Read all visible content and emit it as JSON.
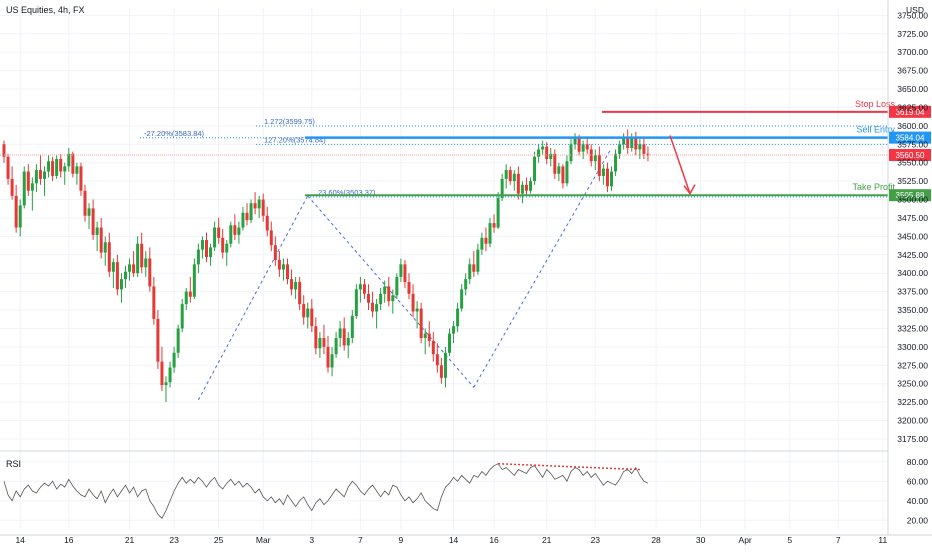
{
  "header": {
    "title": "US Equities, 4h, FX"
  },
  "price_axis": {
    "currency": "USD"
  },
  "rsi_panel": {
    "label": "RSI"
  },
  "colors": {
    "up": "#26a041",
    "down": "#e53935",
    "stop": "#f23645",
    "entry": "#2196f3",
    "target": "#43a047",
    "grid": "#f0f3fa",
    "axis": "#d1d4dc",
    "text": "#131722",
    "dashed": "#4a6fd6",
    "rsi_line": "#555555",
    "divergence": "#e53935"
  },
  "chart_data": {
    "type": "candlestick",
    "title": "US Equities, 4h, FX",
    "ylabel": "USD",
    "ylim": [
      3160,
      3760
    ],
    "y_ticks": [
      3175,
      3200,
      3225,
      3250,
      3275,
      3300,
      3325,
      3350,
      3375,
      3400,
      3425,
      3450,
      3475,
      3500,
      3525,
      3550,
      3575,
      3600,
      3625,
      3650,
      3675,
      3700,
      3725,
      3750
    ],
    "y_tick_labels": [
      "3175.00",
      "3200.00",
      "3225.00",
      "3250.00",
      "3275.00",
      "3300.00",
      "3325.00",
      "3350.00",
      "3375.00",
      "3400.00",
      "3425.00",
      "3450.00",
      "3475.00",
      "3500.00",
      "3525.00",
      "3550.00",
      "3575.00",
      "3600.00",
      "3625.00",
      "3650.00",
      "3675.00",
      "3700.00",
      "3725.00",
      "3750.00"
    ],
    "x_labels": [
      "14",
      "16",
      "21",
      "23",
      "25",
      "Mar",
      "3",
      "7",
      "9",
      "14",
      "16",
      "21",
      "23",
      "28",
      "30",
      "Apr",
      "5",
      "7",
      "11"
    ],
    "x_label_index": [
      4,
      16,
      31,
      42,
      53,
      64,
      76,
      88,
      98,
      111,
      121,
      134,
      146,
      161,
      172,
      183,
      194,
      206,
      217
    ],
    "levels": [
      {
        "name": "Stop Loss",
        "price": 3619.04,
        "label": "3619.04"
      },
      {
        "name": "Sell Entry",
        "price": 3584.04,
        "label": "3584.04"
      },
      {
        "name": "Take Profit",
        "price": 3505.88,
        "label": "3505.88"
      }
    ],
    "current_price": {
      "price": 3560.5,
      "label": "3560.50"
    },
    "second_axis_price": {
      "price": 3575.0,
      "label": "3575.00"
    },
    "fib_annotations": [
      {
        "text": "1.272(3599.75)",
        "price": 3599.75
      },
      {
        "text": "-27.20%(3583.84)",
        "price": 3583.84
      },
      {
        "text": "127.20%(3574.84)",
        "price": 3574.84
      },
      {
        "text": "23.60%(3503.37)",
        "price": 3503.37
      }
    ],
    "candles_ohlc": [
      [
        3575,
        3580,
        3550,
        3558
      ],
      [
        3558,
        3562,
        3520,
        3528
      ],
      [
        3528,
        3545,
        3500,
        3505
      ],
      [
        3505,
        3520,
        3455,
        3462
      ],
      [
        3462,
        3500,
        3450,
        3492
      ],
      [
        3492,
        3545,
        3488,
        3538
      ],
      [
        3538,
        3548,
        3505,
        3512
      ],
      [
        3512,
        3530,
        3485,
        3522
      ],
      [
        3522,
        3548,
        3510,
        3540
      ],
      [
        3540,
        3560,
        3520,
        3528
      ],
      [
        3528,
        3545,
        3505,
        3538
      ],
      [
        3538,
        3560,
        3530,
        3552
      ],
      [
        3552,
        3558,
        3525,
        3532
      ],
      [
        3532,
        3560,
        3528,
        3555
      ],
      [
        3555,
        3562,
        3530,
        3538
      ],
      [
        3538,
        3550,
        3520,
        3545
      ],
      [
        3545,
        3570,
        3538,
        3562
      ],
      [
        3562,
        3565,
        3530,
        3535
      ],
      [
        3535,
        3550,
        3520,
        3545
      ],
      [
        3545,
        3550,
        3505,
        3512
      ],
      [
        3512,
        3520,
        3470,
        3478
      ],
      [
        3478,
        3495,
        3460,
        3488
      ],
      [
        3488,
        3500,
        3445,
        3452
      ],
      [
        3452,
        3470,
        3430,
        3462
      ],
      [
        3462,
        3475,
        3420,
        3428
      ],
      [
        3428,
        3450,
        3410,
        3442
      ],
      [
        3442,
        3455,
        3395,
        3402
      ],
      [
        3402,
        3420,
        3380,
        3415
      ],
      [
        3415,
        3425,
        3370,
        3378
      ],
      [
        3378,
        3400,
        3360,
        3392
      ],
      [
        3392,
        3410,
        3380,
        3402
      ],
      [
        3402,
        3420,
        3390,
        3412
      ],
      [
        3412,
        3430,
        3395,
        3400
      ],
      [
        3400,
        3450,
        3395,
        3440
      ],
      [
        3440,
        3455,
        3400,
        3408
      ],
      [
        3408,
        3430,
        3395,
        3420
      ],
      [
        3420,
        3435,
        3375,
        3382
      ],
      [
        3382,
        3395,
        3330,
        3338
      ],
      [
        3338,
        3350,
        3270,
        3280
      ],
      [
        3280,
        3300,
        3240,
        3248
      ],
      [
        3248,
        3260,
        3225,
        3252
      ],
      [
        3252,
        3280,
        3245,
        3272
      ],
      [
        3272,
        3300,
        3265,
        3292
      ],
      [
        3292,
        3330,
        3285,
        3325
      ],
      [
        3325,
        3365,
        3320,
        3358
      ],
      [
        3358,
        3380,
        3350,
        3375
      ],
      [
        3375,
        3395,
        3360,
        3368
      ],
      [
        3368,
        3420,
        3365,
        3412
      ],
      [
        3412,
        3440,
        3400,
        3432
      ],
      [
        3432,
        3450,
        3420,
        3445
      ],
      [
        3445,
        3455,
        3415,
        3422
      ],
      [
        3422,
        3440,
        3410,
        3435
      ],
      [
        3435,
        3470,
        3430,
        3462
      ],
      [
        3462,
        3475,
        3440,
        3448
      ],
      [
        3448,
        3460,
        3420,
        3428
      ],
      [
        3428,
        3445,
        3410,
        3440
      ],
      [
        3440,
        3470,
        3435,
        3465
      ],
      [
        3465,
        3480,
        3445,
        3452
      ],
      [
        3452,
        3470,
        3440,
        3462
      ],
      [
        3462,
        3490,
        3458,
        3482
      ],
      [
        3482,
        3495,
        3465,
        3472
      ],
      [
        3472,
        3500,
        3468,
        3495
      ],
      [
        3495,
        3510,
        3480,
        3488
      ],
      [
        3488,
        3505,
        3475,
        3500
      ],
      [
        3500,
        3508,
        3470,
        3478
      ],
      [
        3478,
        3490,
        3450,
        3458
      ],
      [
        3458,
        3470,
        3430,
        3438
      ],
      [
        3438,
        3450,
        3410,
        3418
      ],
      [
        3418,
        3430,
        3395,
        3405
      ],
      [
        3405,
        3420,
        3390,
        3412
      ],
      [
        3412,
        3420,
        3385,
        3392
      ],
      [
        3392,
        3405,
        3370,
        3378
      ],
      [
        3378,
        3395,
        3365,
        3388
      ],
      [
        3388,
        3395,
        3350,
        3358
      ],
      [
        3358,
        3370,
        3330,
        3340
      ],
      [
        3340,
        3360,
        3325,
        3352
      ],
      [
        3352,
        3365,
        3320,
        3328
      ],
      [
        3328,
        3340,
        3290,
        3298
      ],
      [
        3298,
        3320,
        3285,
        3312
      ],
      [
        3312,
        3330,
        3290,
        3300
      ],
      [
        3300,
        3315,
        3265,
        3272
      ],
      [
        3272,
        3300,
        3260,
        3290
      ],
      [
        3290,
        3320,
        3285,
        3312
      ],
      [
        3312,
        3335,
        3300,
        3325
      ],
      [
        3325,
        3340,
        3295,
        3302
      ],
      [
        3302,
        3320,
        3285,
        3312
      ],
      [
        3312,
        3350,
        3305,
        3342
      ],
      [
        3342,
        3385,
        3338,
        3378
      ],
      [
        3378,
        3395,
        3360,
        3385
      ],
      [
        3385,
        3392,
        3365,
        3372
      ],
      [
        3372,
        3385,
        3350,
        3360
      ],
      [
        3360,
        3375,
        3340,
        3348
      ],
      [
        3348,
        3365,
        3325,
        3358
      ],
      [
        3358,
        3380,
        3350,
        3372
      ],
      [
        3372,
        3390,
        3360,
        3382
      ],
      [
        3382,
        3395,
        3355,
        3362
      ],
      [
        3362,
        3378,
        3345,
        3370
      ],
      [
        3370,
        3400,
        3365,
        3395
      ],
      [
        3395,
        3420,
        3388,
        3412
      ],
      [
        3412,
        3418,
        3380,
        3388
      ],
      [
        3388,
        3400,
        3365,
        3372
      ],
      [
        3372,
        3385,
        3340,
        3348
      ],
      [
        3348,
        3362,
        3325,
        3352
      ],
      [
        3352,
        3360,
        3305,
        3312
      ],
      [
        3312,
        3325,
        3290,
        3318
      ],
      [
        3318,
        3335,
        3300,
        3308
      ],
      [
        3308,
        3320,
        3280,
        3290
      ],
      [
        3290,
        3305,
        3265,
        3275
      ],
      [
        3275,
        3285,
        3250,
        3258
      ],
      [
        3258,
        3300,
        3245,
        3292
      ],
      [
        3292,
        3325,
        3288,
        3318
      ],
      [
        3318,
        3335,
        3305,
        3328
      ],
      [
        3328,
        3360,
        3320,
        3352
      ],
      [
        3352,
        3385,
        3348,
        3378
      ],
      [
        3378,
        3400,
        3370,
        3392
      ],
      [
        3392,
        3420,
        3385,
        3412
      ],
      [
        3412,
        3430,
        3395,
        3402
      ],
      [
        3402,
        3440,
        3398,
        3432
      ],
      [
        3432,
        3455,
        3425,
        3448
      ],
      [
        3448,
        3462,
        3430,
        3440
      ],
      [
        3440,
        3475,
        3435,
        3468
      ],
      [
        3468,
        3480,
        3455,
        3462
      ],
      [
        3462,
        3510,
        3460,
        3502
      ],
      [
        3502,
        3535,
        3498,
        3528
      ],
      [
        3528,
        3548,
        3515,
        3540
      ],
      [
        3540,
        3545,
        3520,
        3525
      ],
      [
        3525,
        3540,
        3512,
        3535
      ],
      [
        3535,
        3545,
        3500,
        3508
      ],
      [
        3508,
        3525,
        3495,
        3520
      ],
      [
        3520,
        3530,
        3505,
        3512
      ],
      [
        3512,
        3530,
        3508,
        3525
      ],
      [
        3525,
        3565,
        3520,
        3558
      ],
      [
        3558,
        3575,
        3550,
        3568
      ],
      [
        3568,
        3580,
        3560,
        3572
      ],
      [
        3572,
        3578,
        3548,
        3555
      ],
      [
        3555,
        3570,
        3545,
        3562
      ],
      [
        3562,
        3568,
        3528,
        3535
      ],
      [
        3535,
        3550,
        3525,
        3545
      ],
      [
        3545,
        3548,
        3515,
        3522
      ],
      [
        3522,
        3560,
        3518,
        3552
      ],
      [
        3552,
        3582,
        3548,
        3575
      ],
      [
        3575,
        3590,
        3568,
        3584
      ],
      [
        3584,
        3588,
        3560,
        3565
      ],
      [
        3565,
        3580,
        3555,
        3575
      ],
      [
        3575,
        3585,
        3562,
        3568
      ],
      [
        3568,
        3575,
        3545,
        3552
      ],
      [
        3552,
        3568,
        3540,
        3560
      ],
      [
        3560,
        3572,
        3525,
        3532
      ],
      [
        3532,
        3548,
        3520,
        3542
      ],
      [
        3542,
        3550,
        3510,
        3518
      ],
      [
        3518,
        3545,
        3512,
        3538
      ],
      [
        3538,
        3568,
        3532,
        3562
      ],
      [
        3562,
        3580,
        3555,
        3575
      ],
      [
        3575,
        3590,
        3568,
        3585
      ],
      [
        3585,
        3595,
        3562,
        3570
      ],
      [
        3570,
        3590,
        3565,
        3585
      ],
      [
        3585,
        3592,
        3560,
        3568
      ],
      [
        3568,
        3582,
        3555,
        3575
      ],
      [
        3575,
        3585,
        3555,
        3562
      ],
      [
        3562,
        3572,
        3552,
        3560
      ]
    ],
    "rsi": {
      "ylim": [
        10,
        90
      ],
      "y_ticks": [
        20,
        40,
        60,
        80
      ],
      "y_tick_labels": [
        "20.00",
        "40.00",
        "60.00",
        "80.00"
      ],
      "values": [
        60,
        46,
        40,
        50,
        44,
        52,
        56,
        50,
        48,
        54,
        58,
        55,
        60,
        52,
        57,
        54,
        62,
        55,
        50,
        46,
        44,
        52,
        46,
        42,
        50,
        38,
        46,
        52,
        44,
        50,
        56,
        48,
        54,
        44,
        50,
        52,
        40,
        34,
        26,
        22,
        30,
        40,
        50,
        58,
        64,
        58,
        62,
        58,
        64,
        60,
        54,
        60,
        64,
        56,
        52,
        58,
        62,
        56,
        60,
        54,
        58,
        54,
        48,
        52,
        44,
        40,
        44,
        38,
        42,
        36,
        46,
        40,
        34,
        40,
        44,
        36,
        30,
        38,
        42,
        36,
        40,
        46,
        52,
        48,
        44,
        54,
        60,
        56,
        50,
        46,
        52,
        56,
        50,
        44,
        50,
        46,
        56,
        54,
        46,
        40,
        44,
        38,
        42,
        48,
        40,
        36,
        32,
        30,
        44,
        54,
        58,
        64,
        60,
        66,
        62,
        58,
        66,
        64,
        70,
        66,
        72,
        76,
        78,
        72,
        74,
        70,
        66,
        72,
        70,
        68,
        74,
        76,
        70,
        64,
        72,
        68,
        62,
        64,
        66,
        60,
        70,
        74,
        72,
        66,
        70,
        64,
        68,
        62,
        56,
        60,
        58,
        56,
        62,
        70,
        72,
        68,
        74,
        66,
        60,
        58
      ],
      "divergence_text": ""
    }
  }
}
